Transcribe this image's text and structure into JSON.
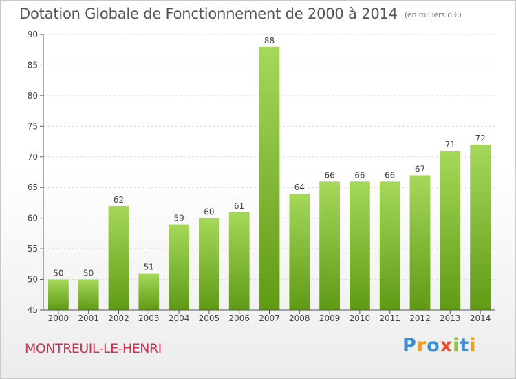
{
  "title": "Dotation Globale de Fonctionnement de 2000 à 2014",
  "unit": "(en milliers d'€)",
  "commune": "MONTREUIL-LE-HENRI",
  "logo": {
    "text": "Proxiti",
    "letter_colors": [
      "#3a8fd6",
      "#e8a020",
      "#3a8fd6",
      "#e94e2b",
      "#8dc63f",
      "#3a8fd6",
      "#e8a020"
    ]
  },
  "colors": {
    "bar_light": "#a6d85a",
    "bar_dark": "#5f9a15",
    "grid": "#d9d9d9",
    "axis": "#555555",
    "text": "#444444"
  },
  "chart_data": {
    "type": "bar",
    "categories": [
      "2000",
      "2001",
      "2002",
      "2003",
      "2004",
      "2005",
      "2006",
      "2007",
      "2008",
      "2009",
      "2010",
      "2011",
      "2012",
      "2013",
      "2014"
    ],
    "values": [
      50,
      50,
      62,
      51,
      59,
      60,
      61,
      88,
      64,
      66,
      66,
      66,
      67,
      71,
      72
    ],
    "data_labels": [
      "50",
      "50",
      "62",
      "51",
      "59",
      "60",
      "61",
      "88",
      "64",
      "66",
      "66",
      "66",
      "67",
      "71",
      "72"
    ],
    "ylim": [
      45,
      90
    ],
    "yticks": [
      "45",
      "50",
      "55",
      "60",
      "65",
      "70",
      "75",
      "80",
      "85",
      "90"
    ],
    "grid": true
  }
}
